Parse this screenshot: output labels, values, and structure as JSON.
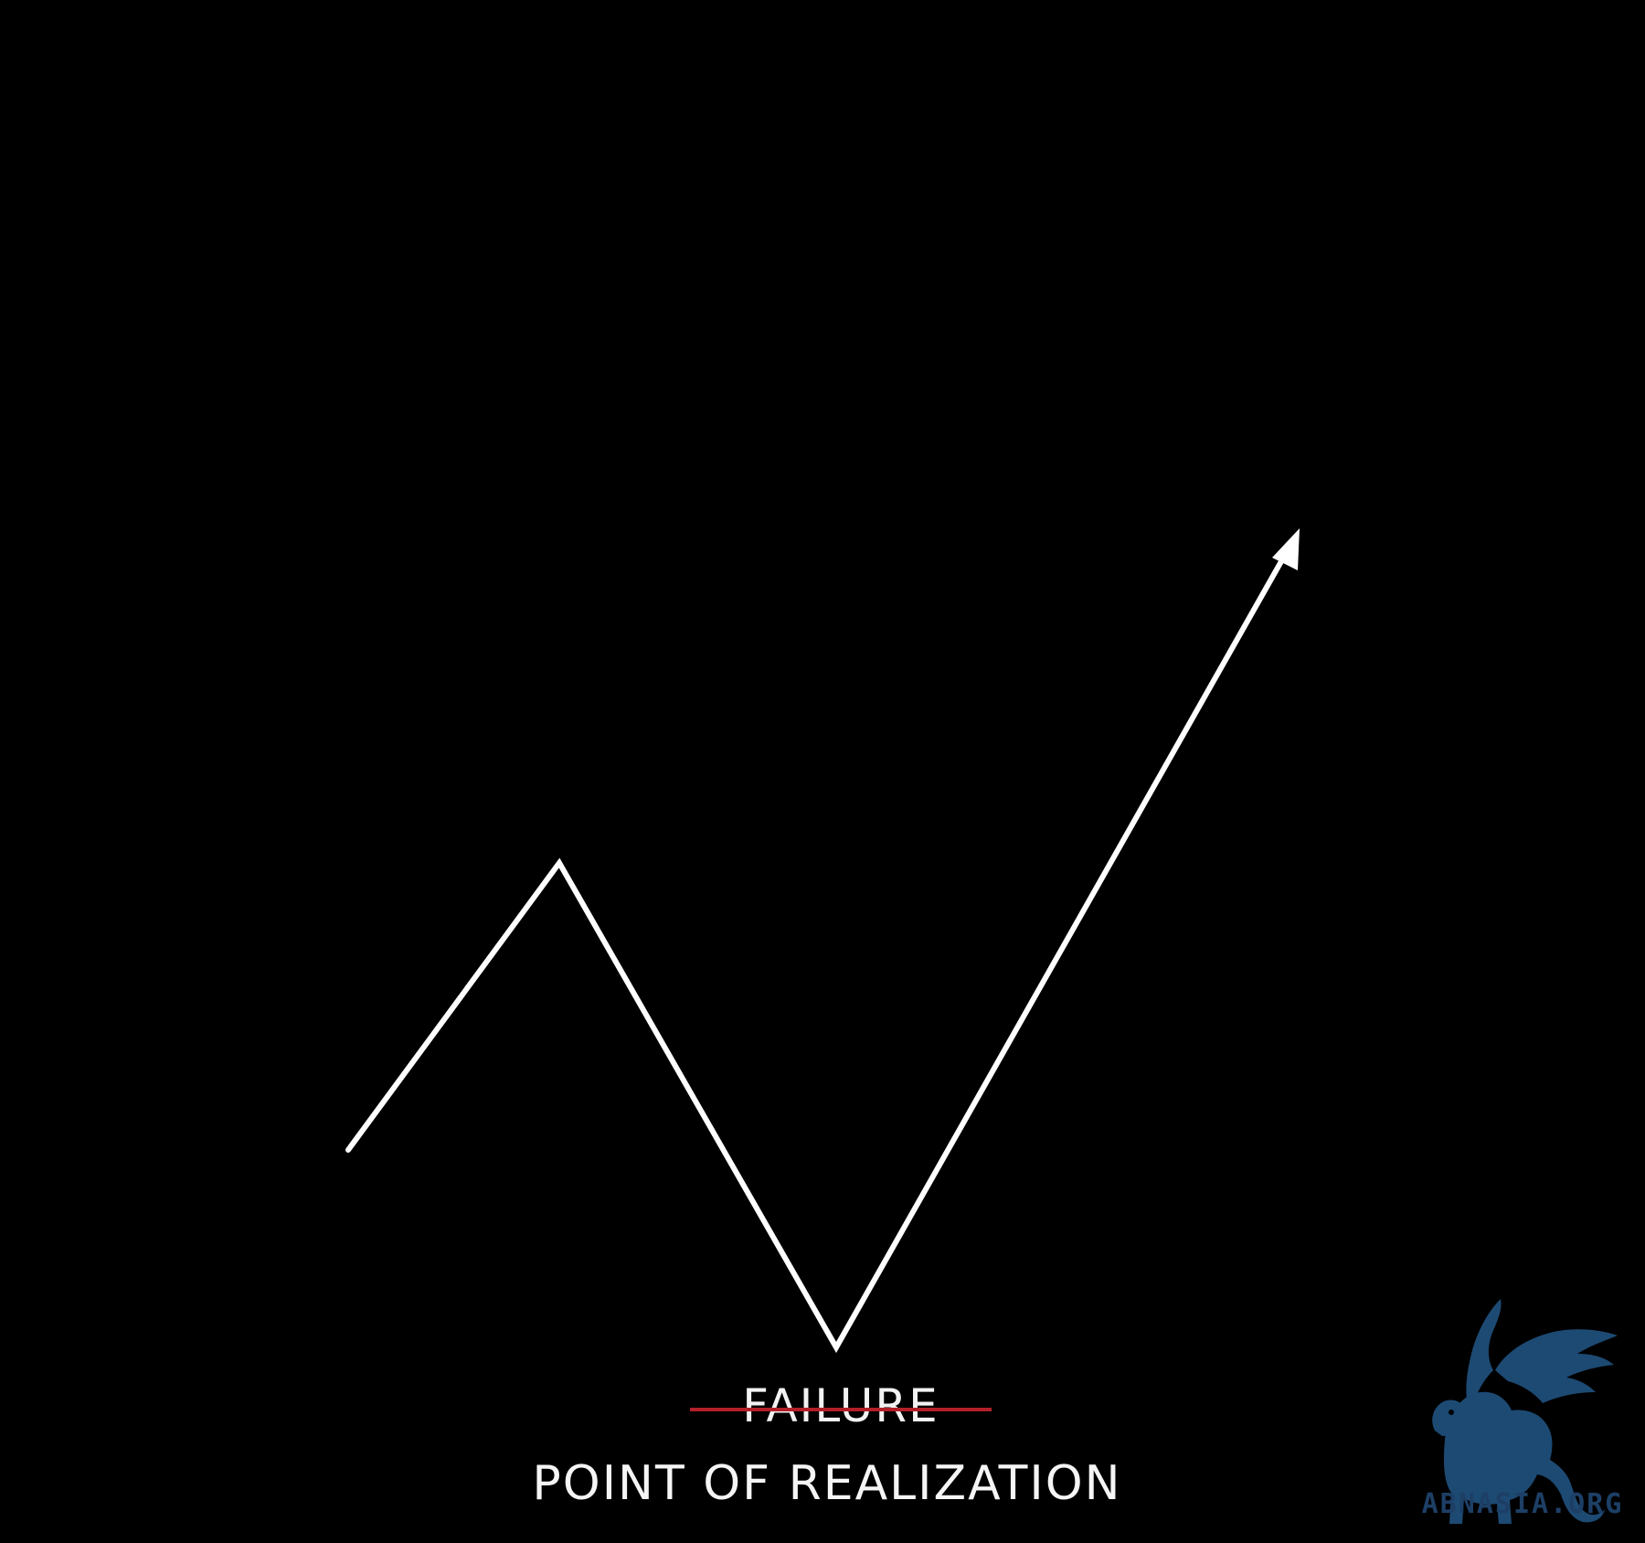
{
  "diagram": {
    "struck_label": "FAILURE",
    "main_label": "POINT OF REALIZATION"
  },
  "watermark": {
    "text": "ABNASIA.ORG"
  },
  "colors": {
    "background": "#000000",
    "line": "#ffffff",
    "strike": "#b3202a",
    "watermark": "#1d4a73"
  }
}
